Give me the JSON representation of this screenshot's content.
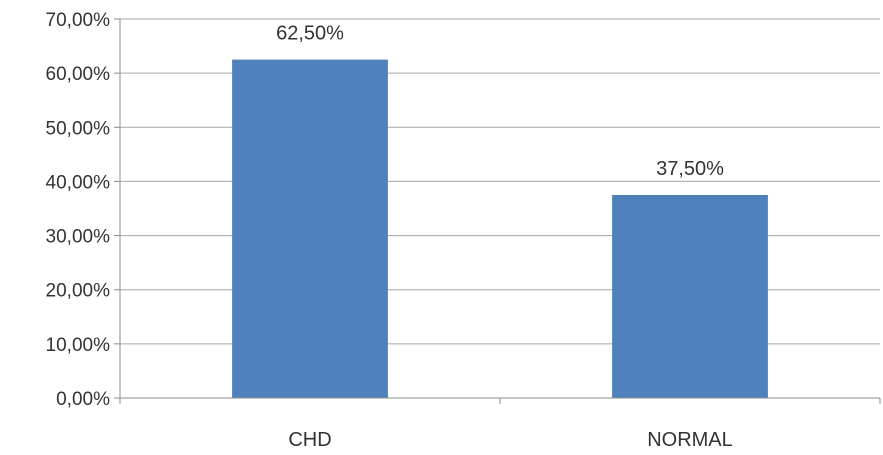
{
  "chart_data": {
    "type": "bar",
    "categories": [
      "CHD",
      "NORMAL"
    ],
    "values": [
      62.5,
      37.5
    ],
    "data_labels": [
      "62,50%",
      "37,50%"
    ],
    "ylim": [
      0,
      70
    ],
    "y_ticks": [
      {
        "value": 0,
        "label": "0,00%"
      },
      {
        "value": 10,
        "label": "10,00%"
      },
      {
        "value": 20,
        "label": "20,00%"
      },
      {
        "value": 30,
        "label": "30,00%"
      },
      {
        "value": 40,
        "label": "40,00%"
      },
      {
        "value": 50,
        "label": "50,00%"
      },
      {
        "value": 60,
        "label": "60,00%"
      },
      {
        "value": 70,
        "label": "70,00%"
      }
    ],
    "grid": true,
    "legend": "none",
    "bar_color": "#4F81BD"
  }
}
